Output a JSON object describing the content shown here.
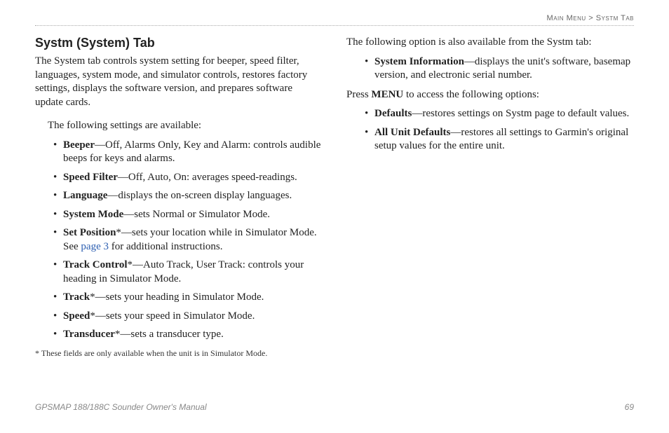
{
  "breadcrumb": {
    "path1": "Main Menu",
    "sep": " > ",
    "path2": "Systm Tab"
  },
  "heading": "Systm (System) Tab",
  "intro": "The System tab controls system setting for beeper, speed filter, languages, system mode, and simulator controls, restores factory settings, displays the software version, and prepares software update cards.",
  "lead": "The following settings are available:",
  "items": [
    {
      "term": "Beeper",
      "desc": "—Off, Alarms Only, Key and Alarm: controls audible beeps for keys and alarms."
    },
    {
      "term": "Speed Filter",
      "desc": "—Off, Auto, On: averages speed-readings."
    },
    {
      "term": "Language",
      "desc": "—displays the on-screen display languages."
    },
    {
      "term": "System Mode",
      "desc": "—sets Normal or Simulator Mode."
    },
    {
      "term": "Set Position",
      "star": "*",
      "desc_a": "—sets your location while in Simulator Mode. See ",
      "link": "page 3",
      "desc_b": " for additional instructions."
    },
    {
      "term": "Track Control",
      "star": "*",
      "desc": "—Auto Track, User Track: controls your heading in Simulator Mode."
    },
    {
      "term": "Track",
      "star": "*",
      "desc": "—sets your heading in Simulator Mode."
    },
    {
      "term": "Speed",
      "star": "*",
      "desc": "—sets your speed in Simulator Mode."
    },
    {
      "term": "Transducer",
      "star": "*",
      "desc": "—sets a transducer type."
    }
  ],
  "footnote": "* These fields are only available when the unit is in Simulator Mode.",
  "right_lead": "The following option is also available from the Systm tab:",
  "right_items1": [
    {
      "term": "System Information",
      "desc": "—displays the unit's software, basemap version, and electronic serial number."
    }
  ],
  "press_a": "Press ",
  "press_b": "MENU",
  "press_c": " to access the following options:",
  "right_items2": [
    {
      "term": "Defaults",
      "desc": "—restores settings on Systm page to default values."
    },
    {
      "term": "All Unit Defaults",
      "desc": "—restores all settings to Garmin's original setup values for the entire unit."
    }
  ],
  "footer": {
    "title": "GPSMAP 188/188C Sounder Owner's Manual",
    "page": "69"
  }
}
